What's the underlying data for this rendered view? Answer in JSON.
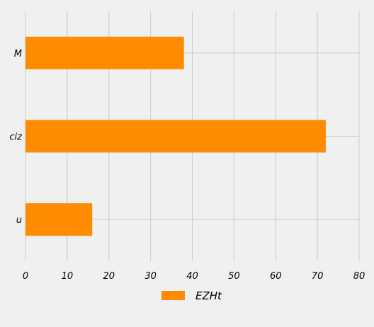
{
  "chart_data": {
    "type": "bar",
    "orientation": "horizontal",
    "categories": [
      "M",
      "ciz",
      "u"
    ],
    "series": [
      {
        "name": "EZHt",
        "values": [
          38,
          72,
          16
        ],
        "color": "#ff8c00"
      }
    ],
    "xlim": [
      0,
      80
    ],
    "xticks": [
      0,
      10,
      20,
      30,
      40,
      50,
      60,
      70,
      80
    ],
    "grid": true,
    "legend_position": "bottom-center",
    "background_color": "#f0f0f0",
    "grid_color": "#cbcbcb"
  }
}
